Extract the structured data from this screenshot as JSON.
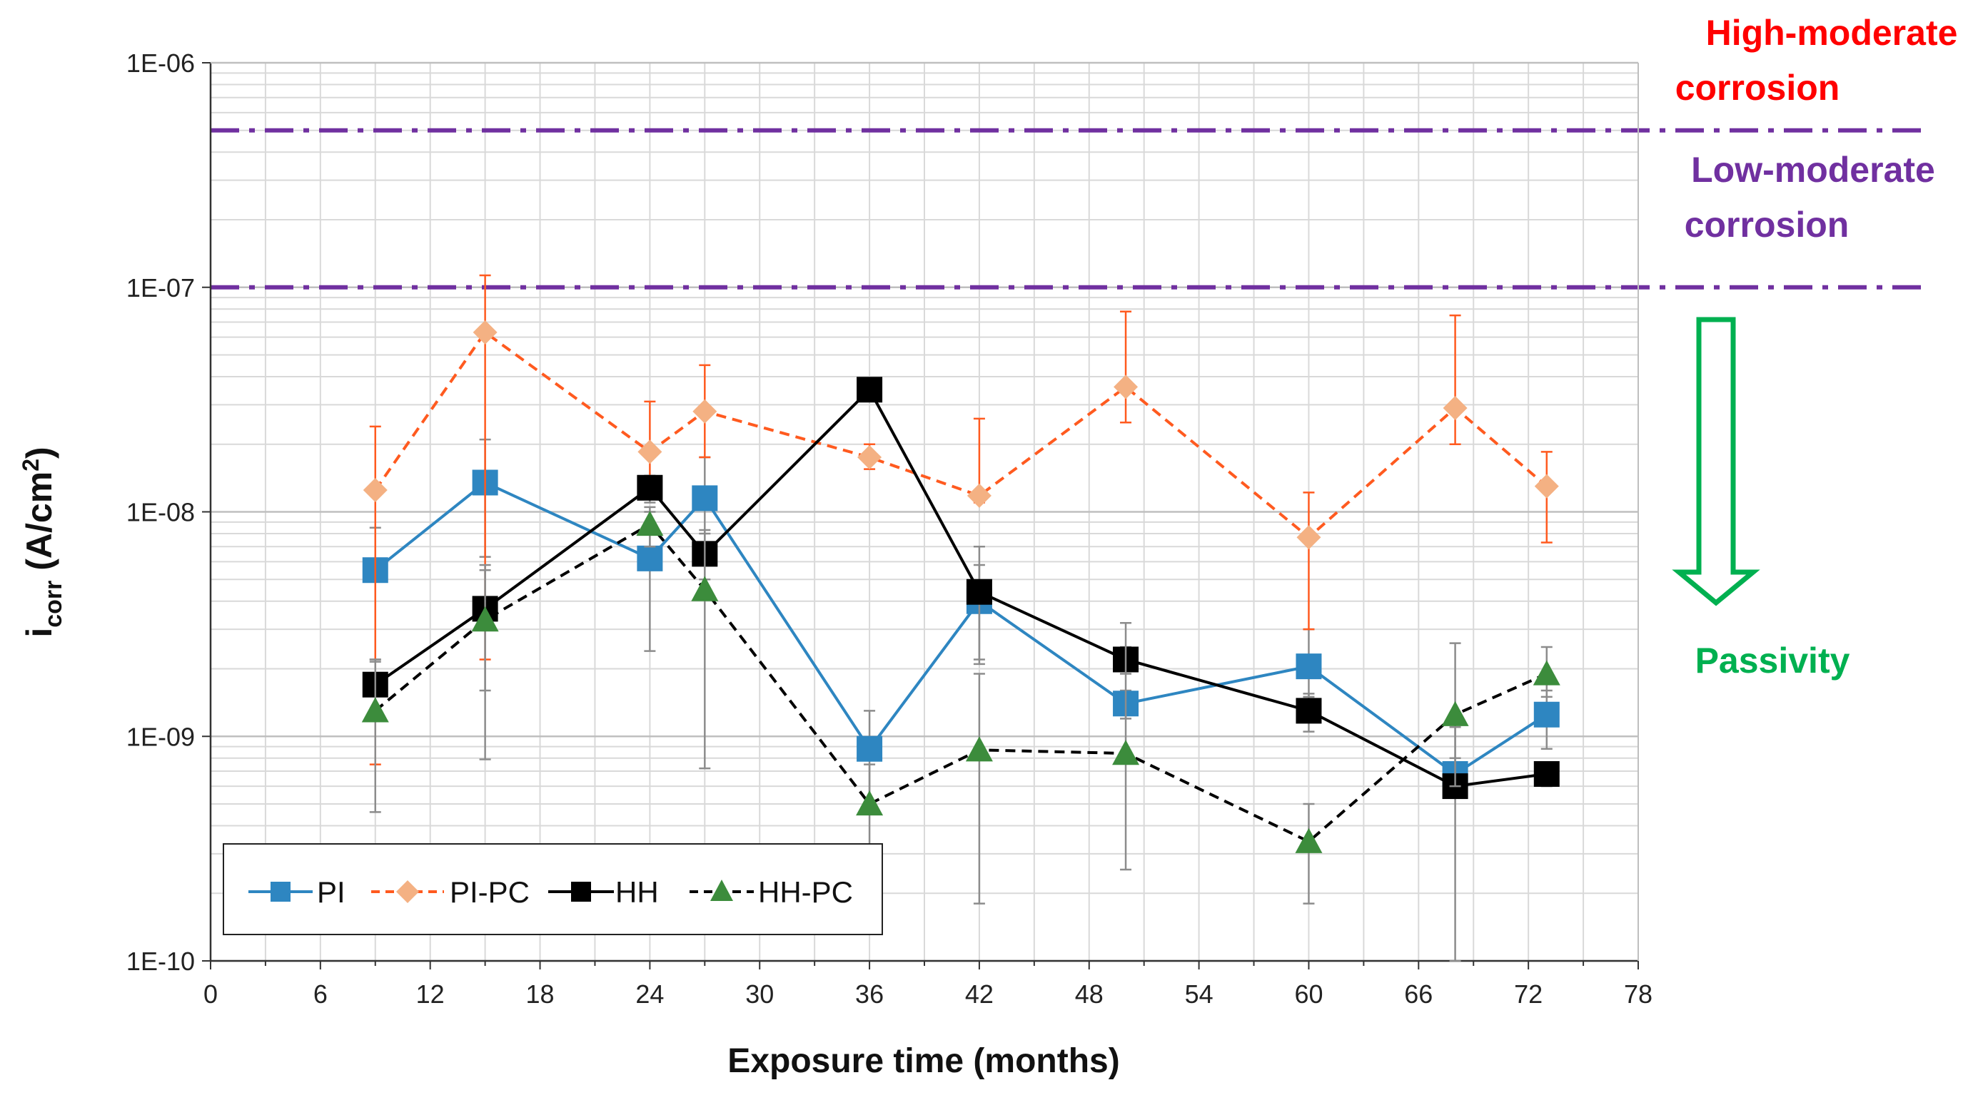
{
  "chart_data": {
    "type": "line",
    "y_scale": "log",
    "xlabel": "Exposure time (months)",
    "ylabel": {
      "main": "i",
      "sub": "corr",
      "unit": " (A/cm",
      "sup": "2",
      "close": ")"
    },
    "xlim": [
      0,
      78
    ],
    "ylim": [
      1e-10,
      1e-06
    ],
    "x_ticks": [
      0,
      6,
      12,
      18,
      24,
      30,
      36,
      42,
      48,
      54,
      60,
      66,
      72,
      78
    ],
    "x_tick_labels": [
      "0",
      "6",
      "12",
      "18",
      "24",
      "30",
      "36",
      "42",
      "48",
      "54",
      "60",
      "66",
      "72",
      "78"
    ],
    "y_ticks": [
      1e-10,
      1e-09,
      1e-08,
      1e-07,
      1e-06
    ],
    "y_tick_labels": [
      "1E-10",
      "1E-09",
      "1E-08",
      "1E-07",
      "1E-06"
    ],
    "grid": true,
    "legend_position": "bottom-left",
    "thresholds": [
      {
        "value": 5e-07,
        "color": "#7030a0"
      },
      {
        "value": 1e-07,
        "color": "#7030a0"
      }
    ],
    "annotations": [
      {
        "lines": [
          "High-moderate",
          "corrosion"
        ],
        "color": "#ff0000"
      },
      {
        "lines": [
          "Low-moderate",
          "corrosion"
        ],
        "color": "#7030a0"
      },
      {
        "lines": [
          "Passivity"
        ],
        "color": "#00b050"
      }
    ],
    "series": [
      {
        "name": "PI",
        "color": "#2e86c1",
        "marker": "square",
        "line": "solid",
        "x": [
          9,
          15,
          24,
          27,
          36,
          42,
          50,
          60,
          68,
          73
        ],
        "y": [
          5.5e-09,
          1.35e-08,
          6.2e-09,
          1.15e-08,
          8.8e-10,
          4e-09,
          1.4e-09,
          2.05e-09,
          6.8e-10,
          1.25e-09
        ],
        "err_low": [
          2.2e-09,
          6.3e-09,
          2.4e-09,
          5.8e-09,
          4.5e-10,
          2.2e-09,
          1.2e-09,
          1.5e-09,
          5.5e-10,
          8.8e-10
        ],
        "err_high": [
          8.5e-09,
          2.1e-08,
          1e-08,
          1.75e-08,
          1.3e-09,
          5.8e-09,
          1.6e-09,
          3e-09,
          8e-10,
          1.6e-09
        ]
      },
      {
        "name": "PI-PC",
        "color": "#f4b183",
        "line_color": "#ff5a1f",
        "marker": "diamond",
        "line": "dashed",
        "x": [
          9,
          15,
          24,
          27,
          36,
          42,
          50,
          60,
          68,
          73
        ],
        "y": [
          1.25e-08,
          6.3e-08,
          1.85e-08,
          2.8e-08,
          1.75e-08,
          1.18e-08,
          3.6e-08,
          7.7e-09,
          2.9e-08,
          1.3e-08
        ],
        "err_low": [
          7.5e-10,
          2.2e-09,
          1.3e-08,
          1.75e-08,
          1.55e-08,
          1.1e-08,
          2.5e-08,
          3e-09,
          2e-08,
          7.3e-09
        ],
        "err_high": [
          2.4e-08,
          1.13e-07,
          3.1e-08,
          4.5e-08,
          2e-08,
          2.6e-08,
          7.8e-08,
          1.22e-08,
          7.5e-08,
          1.85e-08
        ]
      },
      {
        "name": "HH",
        "color": "#000000",
        "marker": "square",
        "line": "solid",
        "x": [
          9,
          15,
          24,
          27,
          36,
          42,
          50,
          60,
          68,
          73
        ],
        "y": [
          1.7e-09,
          3.7e-09,
          1.28e-08,
          6.5e-09,
          3.5e-08,
          4.4e-09,
          2.2e-09,
          1.3e-09,
          6e-10,
          6.8e-10
        ],
        "err_low": [
          1.2e-09,
          1.6e-09,
          1.1e-08,
          5e-09,
          3.2e-08,
          2.1e-09,
          1.9e-09,
          1.05e-09,
          1e-10,
          6e-10
        ],
        "err_high": [
          2.2e-09,
          5.8e-09,
          1.45e-08,
          8e-09,
          3.8e-08,
          7e-09,
          2.5e-09,
          1.55e-09,
          1.1e-09,
          7.6e-10
        ]
      },
      {
        "name": "HH-PC",
        "color": "#3c8c3c",
        "line_color": "#000000",
        "marker": "triangle",
        "line": "dashed",
        "x": [
          9,
          15,
          24,
          27,
          36,
          42,
          50,
          60,
          68,
          73
        ],
        "y": [
          1.3e-09,
          3.3e-09,
          8.8e-09,
          4.5e-09,
          5e-10,
          8.7e-10,
          8.4e-10,
          3.4e-10,
          1.25e-09,
          1.9e-09
        ],
        "err_low": [
          4.6e-10,
          7.9e-10,
          7e-09,
          7.2e-10,
          2.6e-10,
          1.8e-10,
          2.55e-10,
          1.8e-10,
          6e-10,
          1.5e-09
        ],
        "err_high": [
          2.15e-09,
          5.5e-09,
          1.05e-08,
          8.3e-09,
          7.5e-10,
          1.9e-09,
          3.2e-09,
          5e-10,
          2.6e-09,
          2.5e-09
        ]
      }
    ]
  }
}
